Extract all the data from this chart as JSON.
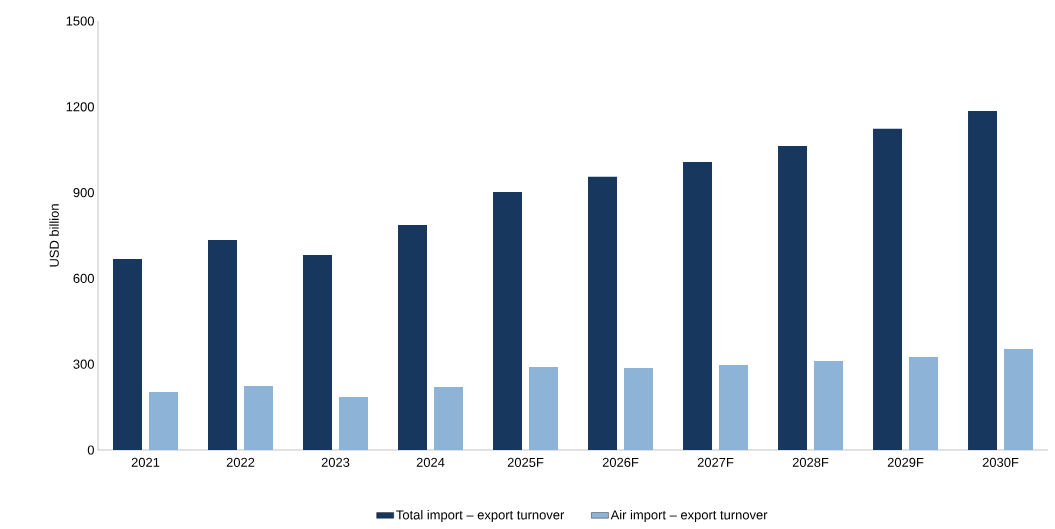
{
  "chart_data": {
    "type": "bar",
    "ylabel": "USD billion",
    "categories": [
      "2021",
      "2022",
      "2023",
      "2024",
      "2025F",
      "2026F",
      "2027F",
      "2028F",
      "2029F",
      "2030F"
    ],
    "series": [
      {
        "name": "Total import – export turnover",
        "color": "#17375e",
        "values": [
          668,
          734,
          682,
          787,
          902,
          955,
          1007,
          1063,
          1123,
          1185
        ]
      },
      {
        "name": "Air import – export turnover",
        "color": "#8db3d6",
        "values": [
          203,
          224,
          185,
          220,
          290,
          287,
          297,
          311,
          325,
          353
        ]
      }
    ],
    "ylim": [
      0,
      1500
    ],
    "yticks": [
      0,
      300,
      600,
      900,
      1200,
      1500
    ],
    "grid": false,
    "legend": "bottom"
  }
}
